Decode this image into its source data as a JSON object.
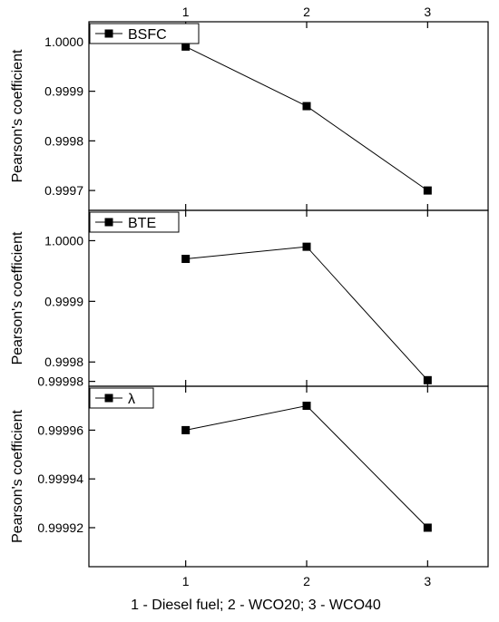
{
  "chart_data": {
    "type": "line",
    "xlabel": "1 - Diesel fuel; 2 - WCO20; 3 - WCO40",
    "x_ticks": [
      "1",
      "2",
      "3"
    ],
    "top_x_ticks": [
      "1",
      "2",
      "3"
    ],
    "xlim": [
      0.2,
      3.5
    ],
    "marker": "square",
    "line_color": "#000000",
    "grid": false,
    "legend_placement": "top-left",
    "panels": [
      {
        "ylabel": "Pearson's coefficient",
        "ylim": [
          0.99966,
          1.00004
        ],
        "yticks": [
          "0.9997",
          "0.9998",
          "0.9999",
          "1.0000"
        ],
        "ytick_values": [
          0.9997,
          0.9998,
          0.9999,
          1.0
        ],
        "series": [
          {
            "name": "BSFC",
            "x": [
              1,
              2,
              3
            ],
            "y": [
              0.99999,
              0.99987,
              0.9997
            ]
          }
        ]
      },
      {
        "ylabel": "Pearson's coefficient",
        "ylim": [
          0.99976,
          1.00005
        ],
        "yticks": [
          "0.9998",
          "0.9999",
          "1.0000"
        ],
        "ytick_values": [
          0.9998,
          0.9999,
          1.0
        ],
        "series": [
          {
            "name": "BTE",
            "x": [
              1,
              2,
              3
            ],
            "y": [
              0.99997,
              0.99999,
              0.99977
            ]
          }
        ]
      },
      {
        "ylabel": "Pearson's coefficient",
        "ylim": [
          0.999904,
          0.999978
        ],
        "yticks": [
          "0.99992",
          "0.99994",
          "0.99996",
          "0.99998"
        ],
        "ytick_values": [
          0.99992,
          0.99994,
          0.99996,
          0.99998
        ],
        "series": [
          {
            "name": "λ",
            "x": [
              1,
              2,
              3
            ],
            "y": [
              0.99996,
              0.99997,
              0.99992
            ]
          }
        ]
      }
    ]
  }
}
